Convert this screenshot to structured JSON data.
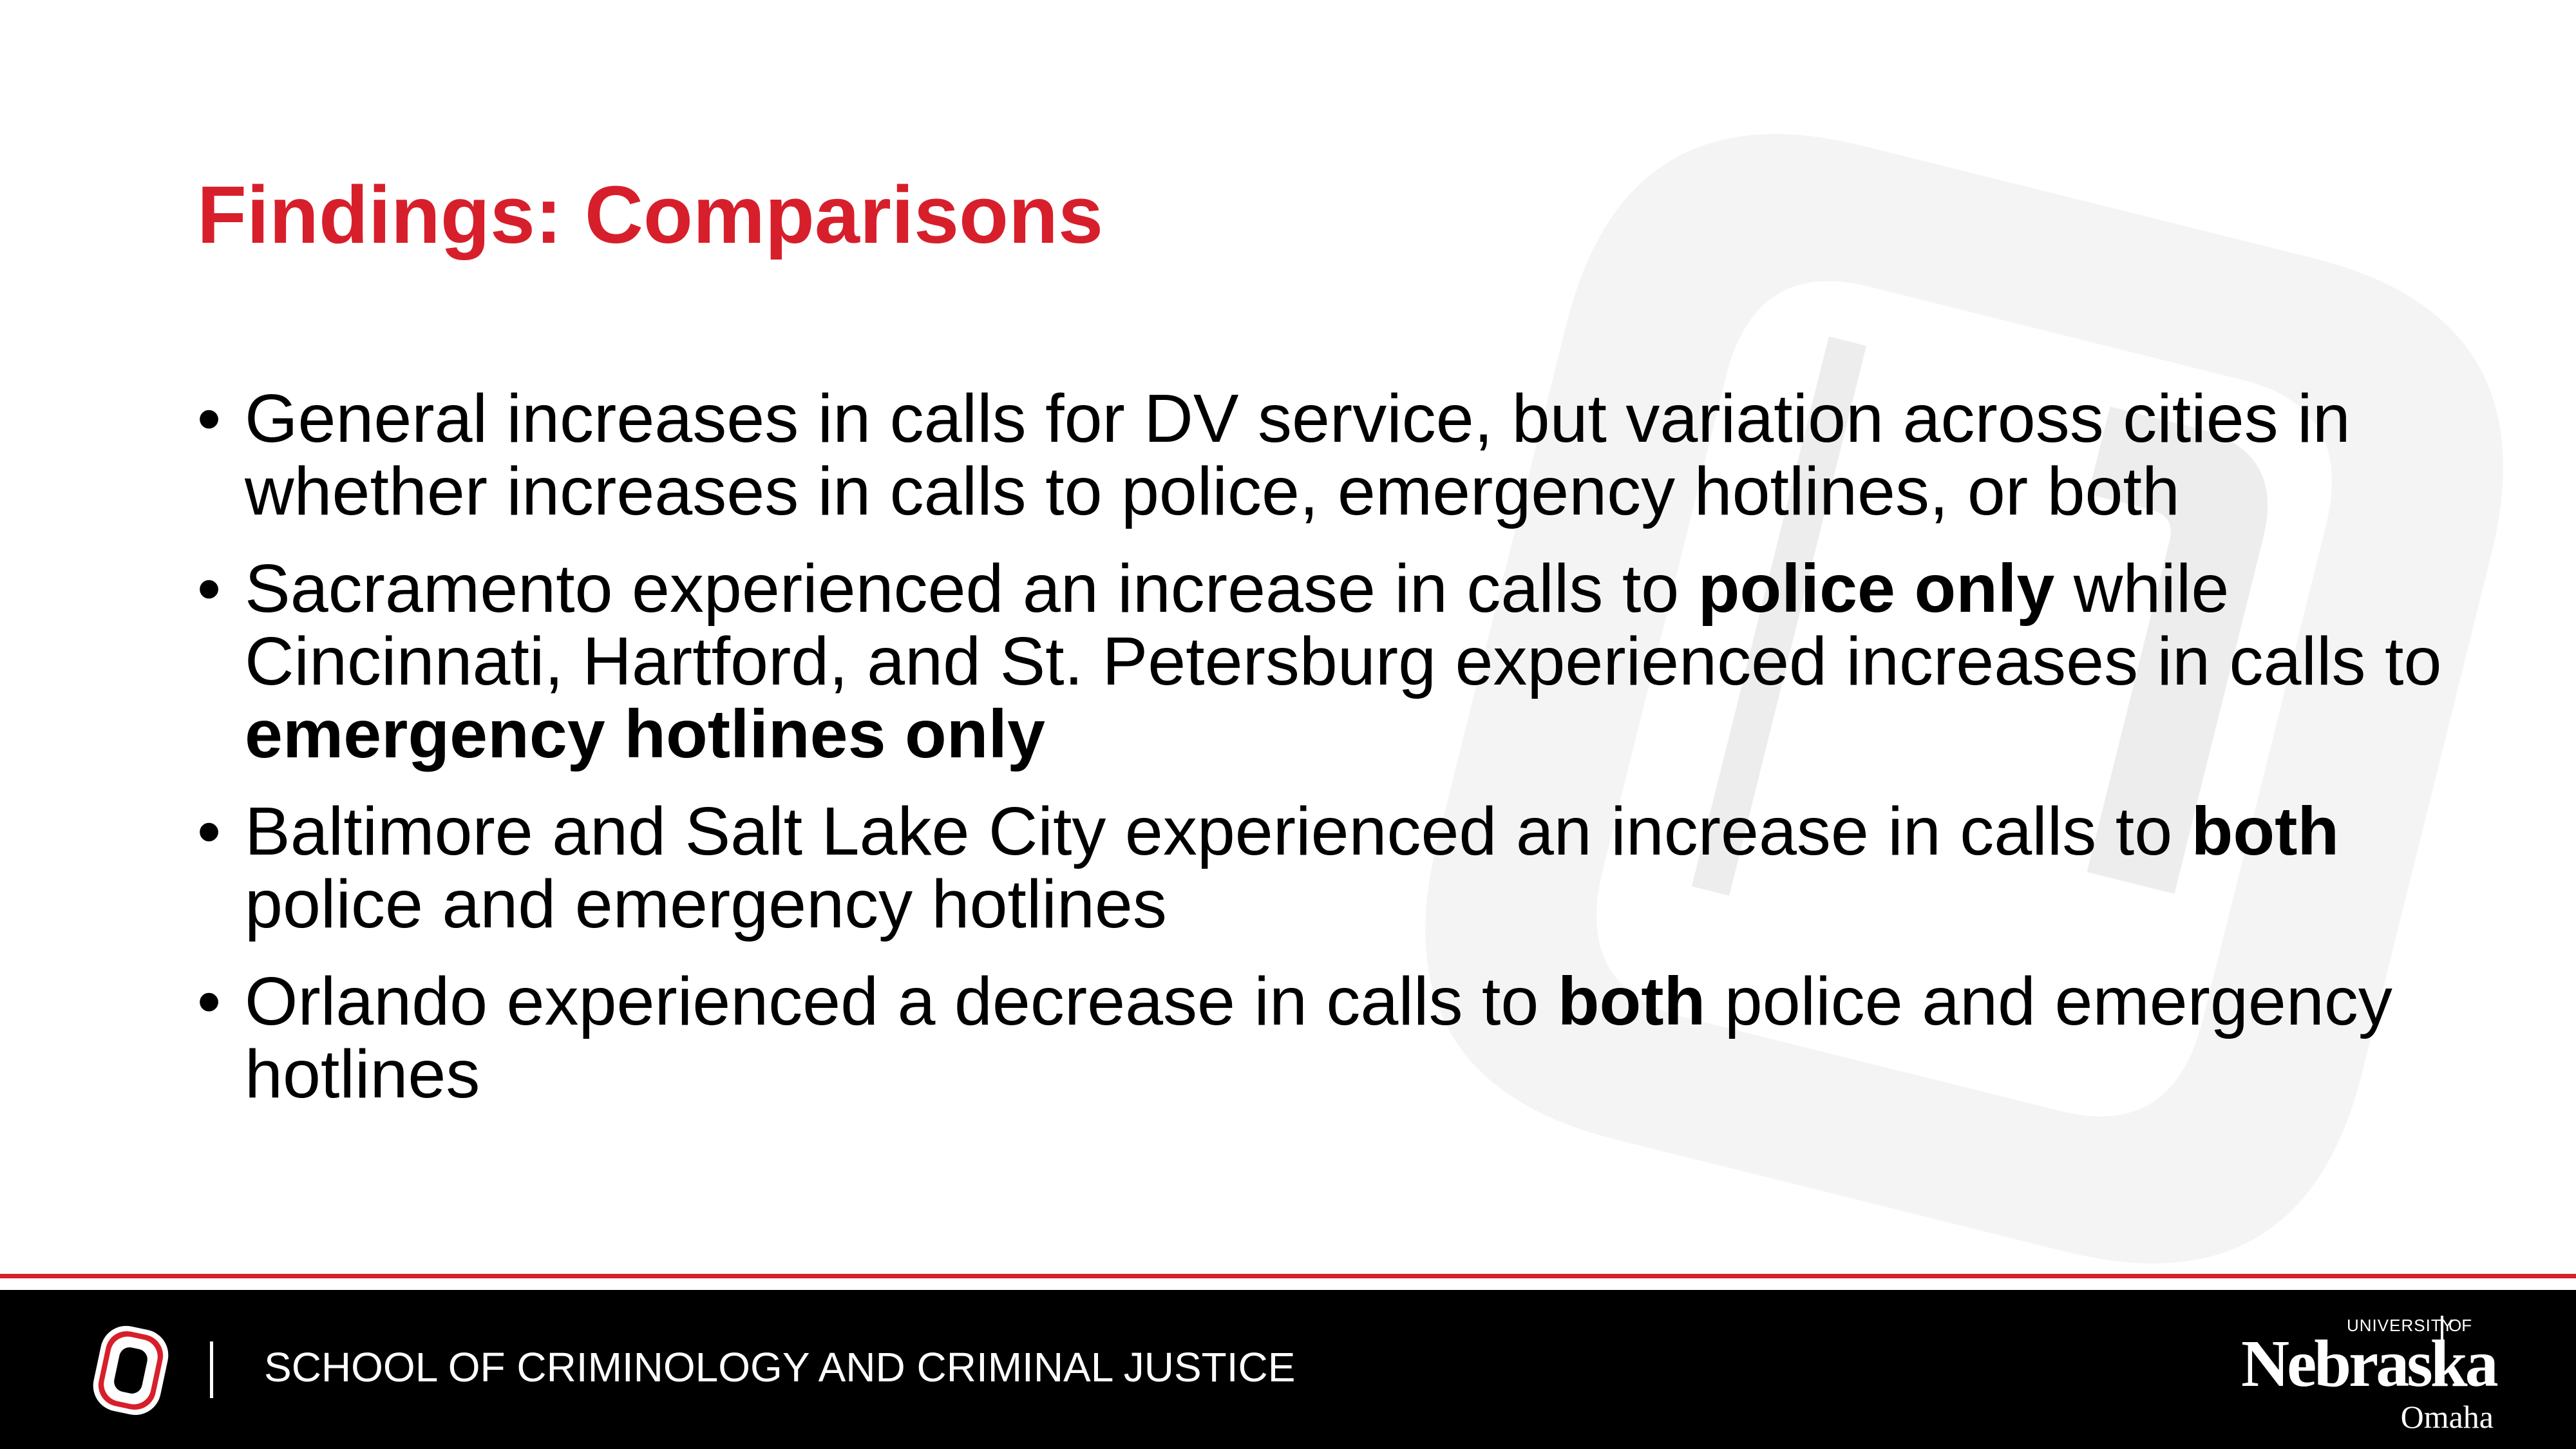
{
  "slide": {
    "title": "Findings: Comparisons",
    "bullets": [
      {
        "parts": [
          {
            "text": "General increases in calls for DV service, but variation across cities in whether increases in calls to police, emergency hotlines, or both",
            "bold": false
          }
        ]
      },
      {
        "parts": [
          {
            "text": "Sacramento experienced an increase in calls to ",
            "bold": false
          },
          {
            "text": "police only",
            "bold": true
          },
          {
            "text": " while Cincinnati, Hartford, and St. Petersburg experienced increases in calls to ",
            "bold": false
          },
          {
            "text": "emergency hotlines only",
            "bold": true
          }
        ]
      },
      {
        "parts": [
          {
            "text": "Baltimore and Salt Lake City experienced an increase in calls to ",
            "bold": false
          },
          {
            "text": "both",
            "bold": true
          },
          {
            "text": " police and emergency hotlines",
            "bold": false
          }
        ]
      },
      {
        "parts": [
          {
            "text": "Orlando experienced a decrease in calls to ",
            "bold": false
          },
          {
            "text": "both",
            "bold": true
          },
          {
            "text": " police and emergency hotlines",
            "bold": false
          }
        ]
      }
    ]
  },
  "footer": {
    "school": "SCHOOL OF CRIMINOLOGY AND CRIMINAL JUSTICE",
    "logo_icon": "uno-o-logo-icon",
    "university_logo": {
      "university": "UNIVERSITY",
      "of": "OF",
      "name": "Nebraska",
      "campus": "Omaha"
    }
  },
  "colors": {
    "title": "#d71f2b",
    "rule": "#d71f2b",
    "footer_bg": "#000000",
    "watermark": "#f3f3f3"
  }
}
